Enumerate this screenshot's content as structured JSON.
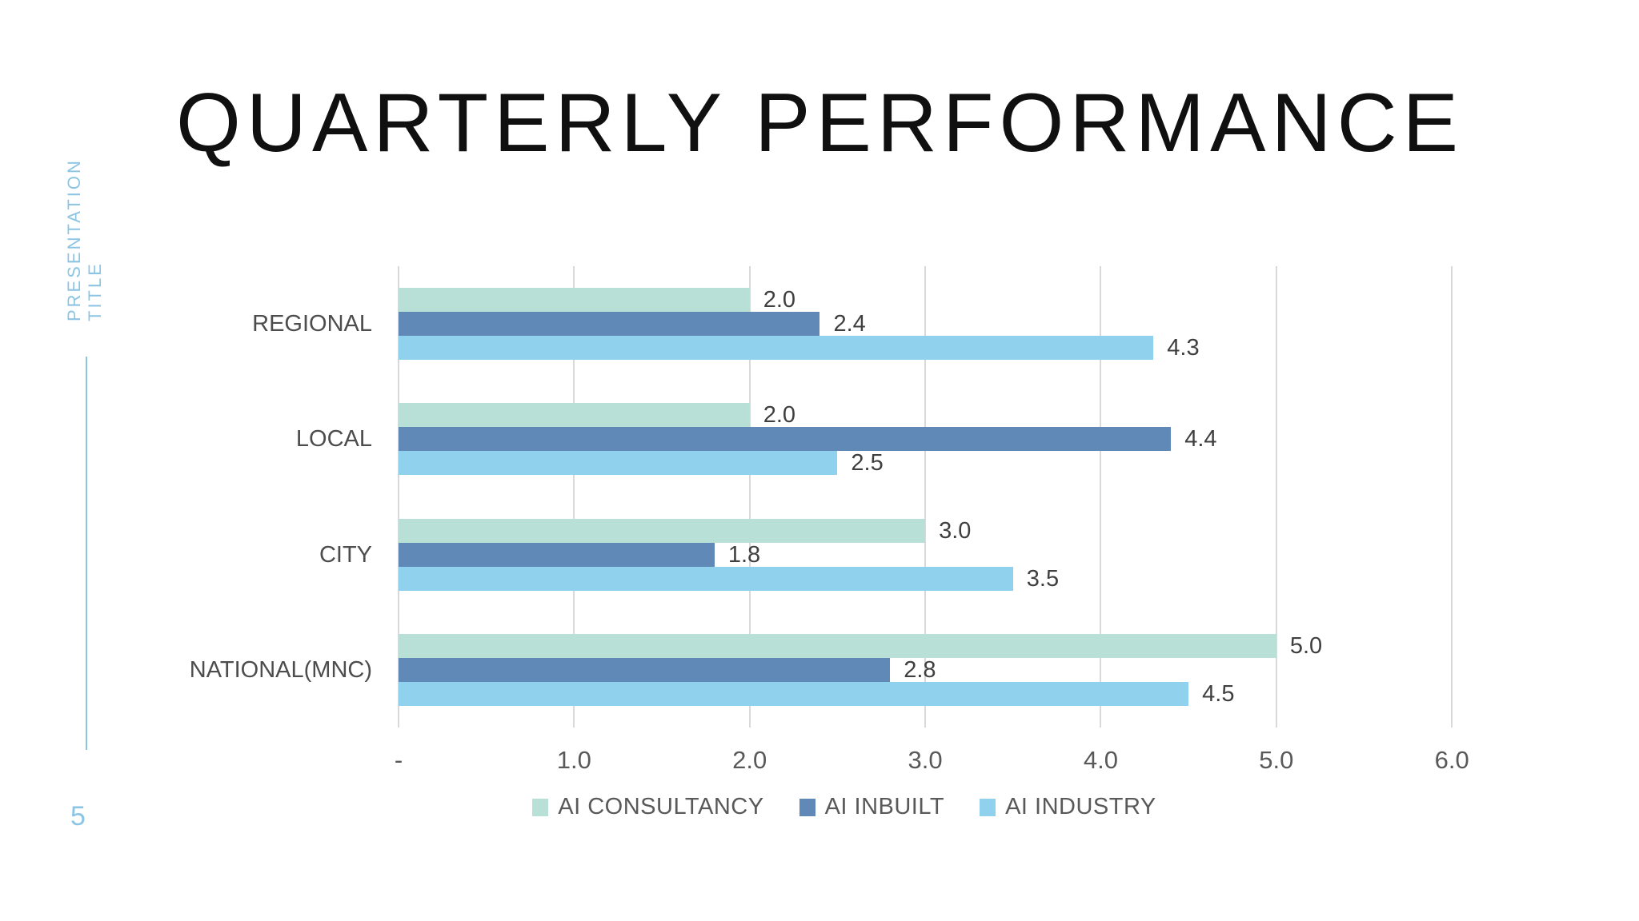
{
  "slide": {
    "title": "QUARTERLY PERFORMANCE",
    "sidebar_line1": "PRESENTATION",
    "sidebar_line2": "TITLE",
    "page_number": "5"
  },
  "colors": {
    "accent_blue": "#8CC5E3",
    "title_text": "#101010",
    "grid": "#D9D9D9",
    "tick_text": "#595959",
    "category_text": "#4D4D4D",
    "value_text": "#3F3F3F"
  },
  "chart_data": {
    "type": "bar",
    "orientation": "horizontal",
    "title": "",
    "xlabel": "",
    "ylabel": "",
    "categories": [
      "REGIONAL",
      "LOCAL",
      "CITY",
      "NATIONAL(MNC)"
    ],
    "series": [
      {
        "name": "AI CONSULTANCY",
        "color": "#B9E0D6",
        "values": [
          2.0,
          2.0,
          3.0,
          5.0
        ]
      },
      {
        "name": "AI INBUILT",
        "color": "#6189B8",
        "values": [
          2.4,
          4.4,
          1.8,
          2.8
        ]
      },
      {
        "name": "AI INDUSTRY",
        "color": "#90D2EE",
        "values": [
          4.3,
          2.5,
          3.5,
          4.5
        ]
      }
    ],
    "x_ticks": [
      "-",
      "1.0",
      "2.0",
      "3.0",
      "4.0",
      "5.0",
      "6.0"
    ],
    "x_tick_values": [
      0,
      1,
      2,
      3,
      4,
      5,
      6
    ],
    "xlim": [
      0,
      6.3
    ],
    "value_labels": "one_decimal_right_of_bar",
    "grid": true,
    "legend_position": "bottom"
  }
}
